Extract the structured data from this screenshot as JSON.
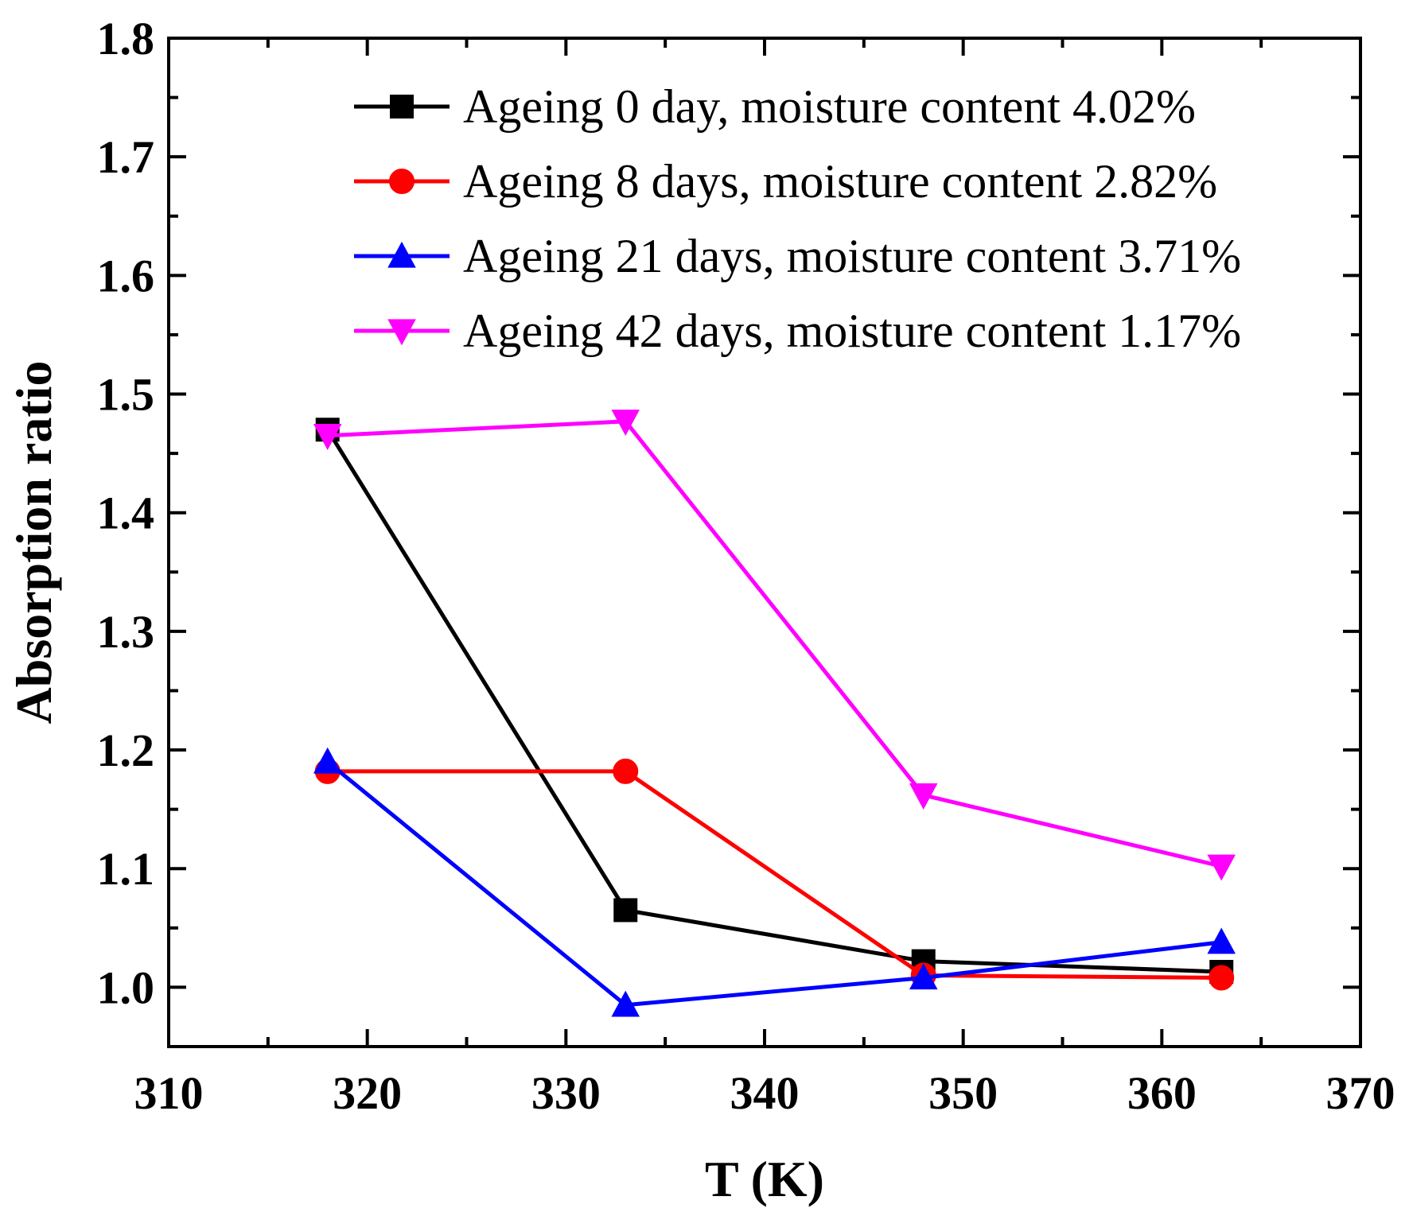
{
  "chart_data": {
    "type": "line",
    "xlabel": "T (K)",
    "ylabel": "Absorption ratio",
    "xlim": [
      310,
      370
    ],
    "ylim": [
      0.95,
      1.8
    ],
    "x_ticks": [
      310,
      320,
      330,
      340,
      350,
      360,
      370
    ],
    "x_tick_labels": [
      "310",
      "320",
      "330",
      "340",
      "350",
      "360",
      "370"
    ],
    "y_ticks": [
      1.0,
      1.1,
      1.2,
      1.3,
      1.4,
      1.5,
      1.6,
      1.7,
      1.8
    ],
    "y_tick_labels": [
      "1.0",
      "1.1",
      "1.2",
      "1.3",
      "1.4",
      "1.5",
      "1.6",
      "1.7",
      "1.8"
    ],
    "grid": false,
    "legend_position": "top-right",
    "series": [
      {
        "name": "Ageing 0 day, moisture content 4.02%",
        "color": "#000000",
        "marker": "square",
        "x": [
          318,
          333,
          348,
          363
        ],
        "y": [
          1.47,
          1.065,
          1.022,
          1.013
        ]
      },
      {
        "name": "Ageing 8 days, moisture content 2.82%",
        "color": "#ff0000",
        "marker": "circle",
        "x": [
          318,
          333,
          348,
          363
        ],
        "y": [
          1.182,
          1.182,
          1.01,
          1.008
        ]
      },
      {
        "name": "Ageing 21 days, moisture content 3.71%",
        "color": "#0000ff",
        "marker": "triangle-up",
        "x": [
          318,
          333,
          348,
          363
        ],
        "y": [
          1.19,
          0.985,
          1.008,
          1.038
        ]
      },
      {
        "name": "Ageing 42 days, moisture content 1.17%",
        "color": "#ff00ff",
        "marker": "triangle-down",
        "x": [
          318,
          333,
          348,
          363
        ],
        "y": [
          1.465,
          1.477,
          1.162,
          1.102
        ]
      }
    ]
  }
}
